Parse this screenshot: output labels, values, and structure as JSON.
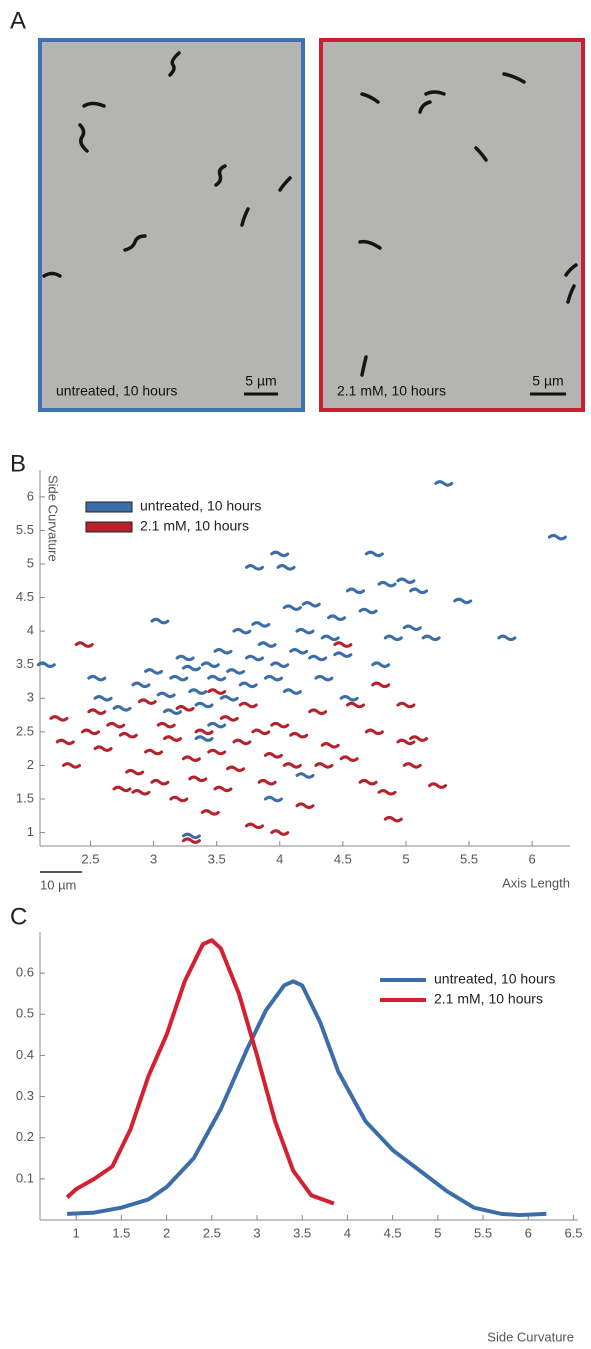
{
  "panel_a": {
    "label": "A",
    "images": [
      {
        "caption": "untreated, 10 hours",
        "scale_bar": "5 µm"
      },
      {
        "caption": "2.1 mM, 10 hours",
        "scale_bar": "5 µm"
      }
    ]
  },
  "chart_data": [
    {
      "type": "scatter",
      "panel_label": "B",
      "x_label": "Axis Length",
      "y_label": "Side Curvature",
      "scale_bar": "10 µm",
      "xlim": [
        2.1,
        6.3
      ],
      "ylim": [
        0.8,
        6.4
      ],
      "xticks": [
        2.5,
        3,
        3.5,
        4,
        4.5,
        5,
        5.5,
        6
      ],
      "yticks": [
        1,
        1.5,
        2,
        2.5,
        3,
        3.5,
        4,
        4.5,
        5,
        5.5,
        6
      ],
      "legend": "top-left",
      "series": [
        {
          "name": "untreated, 10 hours",
          "color": "#3b6ea8",
          "x": [
            2.15,
            2.55,
            2.6,
            2.75,
            2.9,
            3.0,
            3.05,
            3.1,
            3.15,
            3.2,
            3.25,
            3.3,
            3.35,
            3.4,
            3.45,
            3.5,
            3.5,
            3.55,
            3.6,
            3.65,
            3.7,
            3.75,
            3.8,
            3.8,
            3.85,
            3.9,
            3.95,
            4.0,
            4.0,
            4.05,
            4.1,
            4.1,
            4.15,
            4.2,
            4.25,
            4.3,
            4.35,
            4.4,
            4.45,
            4.5,
            4.55,
            4.6,
            4.7,
            4.75,
            4.8,
            4.85,
            4.9,
            5.0,
            5.05,
            5.1,
            5.2,
            5.3,
            5.45,
            5.8,
            6.2,
            3.3,
            3.95,
            4.2,
            3.4
          ],
          "values": [
            3.5,
            3.3,
            3.0,
            2.85,
            3.2,
            3.4,
            4.15,
            3.05,
            2.8,
            3.3,
            3.6,
            3.45,
            3.1,
            2.9,
            3.5,
            3.3,
            2.6,
            3.7,
            3.0,
            3.4,
            4.0,
            3.2,
            4.95,
            3.6,
            4.1,
            3.8,
            3.3,
            5.15,
            3.5,
            4.95,
            4.35,
            3.1,
            3.7,
            4.0,
            4.4,
            3.6,
            3.3,
            3.9,
            4.2,
            3.65,
            3.0,
            4.6,
            4.3,
            5.15,
            3.5,
            4.7,
            3.9,
            4.75,
            4.05,
            4.6,
            3.9,
            6.2,
            4.45,
            3.9,
            5.4,
            0.95,
            1.5,
            1.85,
            2.4
          ]
        },
        {
          "name": "2.1 mM, 10 hours",
          "color": "#b5222c",
          "x": [
            2.25,
            2.3,
            2.35,
            2.45,
            2.5,
            2.55,
            2.6,
            2.7,
            2.8,
            2.85,
            2.9,
            2.95,
            3.0,
            3.05,
            3.1,
            3.15,
            3.2,
            3.25,
            3.3,
            3.35,
            3.4,
            3.45,
            3.5,
            3.5,
            3.55,
            3.6,
            3.65,
            3.7,
            3.75,
            3.8,
            3.85,
            3.9,
            3.95,
            4.0,
            4.0,
            4.1,
            4.15,
            4.2,
            4.3,
            4.35,
            4.4,
            4.5,
            4.55,
            4.6,
            4.7,
            4.75,
            4.8,
            4.85,
            4.9,
            5.0,
            5.0,
            5.05,
            5.1,
            5.25,
            3.3,
            2.75
          ],
          "values": [
            2.7,
            2.35,
            2.0,
            3.8,
            2.5,
            2.8,
            2.25,
            2.6,
            2.45,
            1.9,
            1.6,
            2.95,
            2.2,
            1.75,
            2.6,
            2.4,
            1.5,
            2.85,
            2.1,
            1.8,
            2.5,
            1.3,
            2.2,
            3.1,
            1.65,
            2.7,
            1.95,
            2.35,
            2.9,
            1.1,
            2.5,
            1.75,
            2.15,
            1.0,
            2.6,
            2.0,
            2.45,
            1.4,
            2.8,
            2.0,
            2.3,
            3.8,
            2.1,
            2.9,
            1.75,
            2.5,
            3.2,
            1.6,
            1.2,
            2.35,
            2.9,
            2.0,
            2.4,
            1.7,
            0.88,
            1.65
          ]
        }
      ]
    },
    {
      "type": "line",
      "panel_label": "C",
      "x_label": "Side Curvature",
      "xlim": [
        0.6,
        6.55
      ],
      "ylim": [
        0,
        0.7
      ],
      "xticks": [
        1,
        1.5,
        2,
        2.5,
        3,
        3.5,
        4,
        4.5,
        5,
        5.5,
        6,
        6.5
      ],
      "yticks": [
        0.1,
        0.2,
        0.3,
        0.4,
        0.5,
        0.6
      ],
      "legend": "top-right",
      "series": [
        {
          "name": "untreated, 10 hours",
          "color": "#3b6ea8",
          "x": [
            0.9,
            1.2,
            1.5,
            1.8,
            2.0,
            2.3,
            2.6,
            2.9,
            3.1,
            3.3,
            3.4,
            3.5,
            3.7,
            3.9,
            4.2,
            4.5,
            4.8,
            5.1,
            5.4,
            5.7,
            5.9,
            6.2
          ],
          "values": [
            0.015,
            0.018,
            0.03,
            0.05,
            0.08,
            0.15,
            0.27,
            0.42,
            0.51,
            0.57,
            0.58,
            0.57,
            0.48,
            0.36,
            0.24,
            0.17,
            0.12,
            0.07,
            0.03,
            0.015,
            0.012,
            0.015
          ]
        },
        {
          "name": "2.1 mM, 10 hours",
          "color": "#d42030",
          "x": [
            0.9,
            1.0,
            1.2,
            1.4,
            1.6,
            1.8,
            2.0,
            2.2,
            2.4,
            2.5,
            2.6,
            2.8,
            3.0,
            3.2,
            3.4,
            3.6,
            3.85
          ],
          "values": [
            0.055,
            0.075,
            0.1,
            0.13,
            0.22,
            0.35,
            0.45,
            0.58,
            0.67,
            0.68,
            0.66,
            0.55,
            0.4,
            0.24,
            0.12,
            0.06,
            0.04
          ]
        }
      ]
    }
  ]
}
